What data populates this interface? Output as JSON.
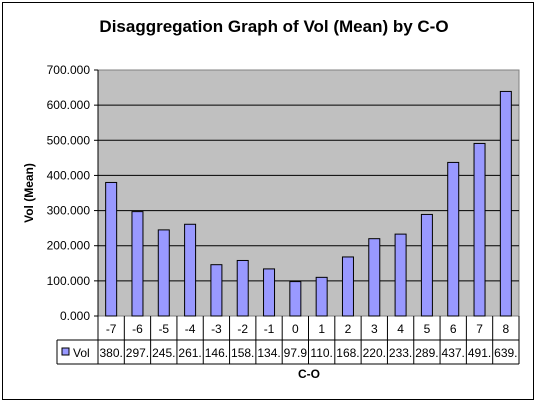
{
  "chart_data": {
    "type": "bar",
    "title": "Disaggregation Graph of Vol (Mean) by C-O",
    "xlabel": "C-O",
    "ylabel": "Vol (Mean)",
    "ylim": [
      0,
      700
    ],
    "yticks": [
      0,
      100,
      200,
      300,
      400,
      500,
      600,
      700
    ],
    "ytick_labels": [
      "0.000",
      "100.000",
      "200.000",
      "300.000",
      "400.000",
      "500.000",
      "600.000",
      "700.000"
    ],
    "grid": true,
    "legend": "data-table-left",
    "bar_color": "#9999ff",
    "plot_background": "#c0c0c0",
    "categories": [
      "-7",
      "-6",
      "-5",
      "-4",
      "-3",
      "-2",
      "-1",
      "0",
      "1",
      "2",
      "3",
      "4",
      "5",
      "6",
      "7",
      "8"
    ],
    "series": [
      {
        "name": "Vol",
        "values": [
          380,
          297,
          245,
          261,
          146,
          158,
          134,
          97.9,
          110,
          168,
          220,
          233,
          289,
          437,
          491,
          639
        ],
        "table_labels": [
          "380.",
          "297.",
          "245.",
          "261.",
          "146.",
          "158.",
          "134.",
          "97.9",
          "110.",
          "168.",
          "220.",
          "233.",
          "289.",
          "437.",
          "491.",
          "639."
        ]
      }
    ]
  }
}
